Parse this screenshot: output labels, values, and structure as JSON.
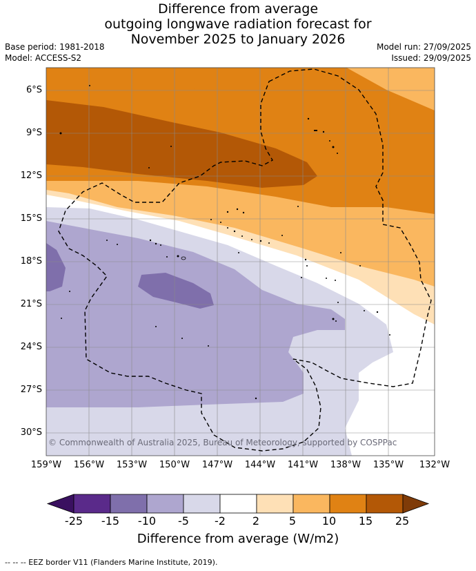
{
  "title": {
    "line1": "Difference from average",
    "line2": "outgoing longwave radiation forecast for",
    "line3": "November 2025 to January 2026"
  },
  "meta": {
    "base_period": "Base period: 1981-2018",
    "model": "Model: ACCESS-S2",
    "model_run": "Model run: 27/09/2025",
    "issued": "Issued: 29/09/2025"
  },
  "map": {
    "lat_labels": [
      "6°S",
      "9°S",
      "12°S",
      "15°S",
      "18°S",
      "21°S",
      "24°S",
      "27°S",
      "30°S"
    ],
    "lon_labels": [
      "159°W",
      "156°W",
      "153°W",
      "150°W",
      "147°W",
      "144°W",
      "141°W",
      "138°W",
      "135°W",
      "132°W"
    ],
    "copyright": "© Commonwealth of Australia 2025, Bureau of Meteorology, supported by COSPPac"
  },
  "colorbar": {
    "title": "Difference from average (W/m2)",
    "ticks": [
      "-25",
      "-15",
      "-10",
      "-5",
      "-2",
      "2",
      "5",
      "10",
      "15",
      "25"
    ],
    "colors": [
      "#3a1060",
      "#5a2a8a",
      "#7f6fab",
      "#aea6cf",
      "#d8d8e9",
      "#ffffff",
      "#fee0b6",
      "#fab75f",
      "#e08214",
      "#b35806",
      "#7f3b08"
    ]
  },
  "footer": {
    "legend": "--  --  -- EEZ border V11 (Flanders Marine Institute, 2019)."
  }
}
